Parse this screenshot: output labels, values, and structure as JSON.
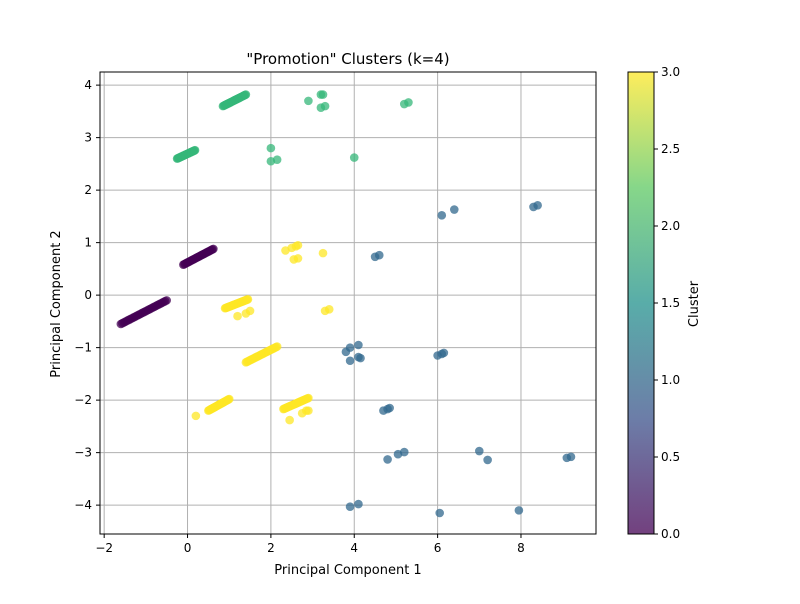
{
  "chart_data": {
    "type": "scatter",
    "title": "\"Promotion\" Clusters (k=4)",
    "xlabel": "Principal Component 1",
    "ylabel": "Principal Component 2",
    "xlim": [
      -2.1,
      9.8
    ],
    "ylim": [
      -4.55,
      4.25
    ],
    "xticks": [
      -2,
      0,
      2,
      4,
      6,
      8
    ],
    "yticks": [
      -4,
      -3,
      -2,
      -1,
      0,
      1,
      2,
      3,
      4
    ],
    "grid": true,
    "colormap": "viridis",
    "colormap_stops": [
      "#440154",
      "#3b528b",
      "#21918c",
      "#5ec962",
      "#fde725"
    ],
    "colorbar": {
      "label": "Cluster",
      "range": [
        0,
        3
      ],
      "ticks": [
        "0.0",
        "0.5",
        "1.0",
        "1.5",
        "2.0",
        "2.5",
        "3.0"
      ]
    },
    "series": [
      {
        "cluster": 0,
        "color": "#440154",
        "segments": [
          {
            "from": [
              -1.6,
              -0.55
            ],
            "to": [
              -0.5,
              -0.1
            ]
          },
          {
            "from": [
              -0.1,
              0.58
            ],
            "to": [
              0.62,
              0.88
            ]
          }
        ],
        "points": []
      },
      {
        "cluster": 1,
        "color": "#31688e",
        "segments": [],
        "points": [
          [
            6.1,
            1.52
          ],
          [
            6.4,
            1.63
          ],
          [
            8.3,
            1.68
          ],
          [
            8.4,
            1.71
          ],
          [
            4.5,
            0.73
          ],
          [
            4.6,
            0.76
          ],
          [
            4.1,
            -0.95
          ],
          [
            3.9,
            -1.0
          ],
          [
            3.8,
            -1.08
          ],
          [
            3.9,
            -1.25
          ],
          [
            4.1,
            -1.18
          ],
          [
            4.15,
            -1.2
          ],
          [
            6.0,
            -1.15
          ],
          [
            6.1,
            -1.12
          ],
          [
            6.15,
            -1.1
          ],
          [
            4.7,
            -2.2
          ],
          [
            4.8,
            -2.17
          ],
          [
            4.85,
            -2.15
          ],
          [
            4.8,
            -3.13
          ],
          [
            5.05,
            -3.03
          ],
          [
            5.2,
            -2.99
          ],
          [
            7.0,
            -2.97
          ],
          [
            7.2,
            -3.14
          ],
          [
            9.1,
            -3.1
          ],
          [
            9.2,
            -3.08
          ],
          [
            3.9,
            -4.03
          ],
          [
            4.1,
            -3.98
          ],
          [
            6.05,
            -4.15
          ],
          [
            7.95,
            -4.1
          ]
        ]
      },
      {
        "cluster": 2,
        "color": "#35b779",
        "segments": [
          {
            "from": [
              0.85,
              3.6
            ],
            "to": [
              1.4,
              3.82
            ]
          },
          {
            "from": [
              -0.25,
              2.6
            ],
            "to": [
              0.18,
              2.76
            ]
          }
        ],
        "points": [
          [
            2.9,
            3.7
          ],
          [
            3.2,
            3.82
          ],
          [
            3.25,
            3.82
          ],
          [
            3.2,
            3.57
          ],
          [
            3.3,
            3.6
          ],
          [
            5.2,
            3.64
          ],
          [
            5.3,
            3.67
          ],
          [
            2.0,
            2.8
          ],
          [
            2.0,
            2.55
          ],
          [
            2.15,
            2.58
          ],
          [
            4.0,
            2.62
          ]
        ]
      },
      {
        "cluster": 3,
        "color": "#fde725",
        "segments": [
          {
            "from": [
              0.9,
              -0.25
            ],
            "to": [
              1.45,
              -0.08
            ]
          },
          {
            "from": [
              1.4,
              -1.28
            ],
            "to": [
              2.15,
              -0.98
            ]
          },
          {
            "from": [
              0.5,
              -2.2
            ],
            "to": [
              1.0,
              -1.98
            ]
          },
          {
            "from": [
              2.3,
              -2.17
            ],
            "to": [
              2.9,
              -1.96
            ]
          }
        ],
        "points": [
          [
            2.35,
            0.85
          ],
          [
            2.5,
            0.9
          ],
          [
            2.6,
            0.93
          ],
          [
            2.65,
            0.95
          ],
          [
            2.55,
            0.68
          ],
          [
            2.65,
            0.7
          ],
          [
            3.25,
            0.8
          ],
          [
            1.2,
            -0.4
          ],
          [
            1.4,
            -0.35
          ],
          [
            1.5,
            -0.3
          ],
          [
            3.3,
            -0.3
          ],
          [
            3.4,
            -0.27
          ],
          [
            0.2,
            -2.3
          ],
          [
            2.45,
            -2.38
          ],
          [
            2.75,
            -2.25
          ],
          [
            2.85,
            -2.2
          ],
          [
            2.9,
            -2.2
          ]
        ]
      }
    ]
  }
}
